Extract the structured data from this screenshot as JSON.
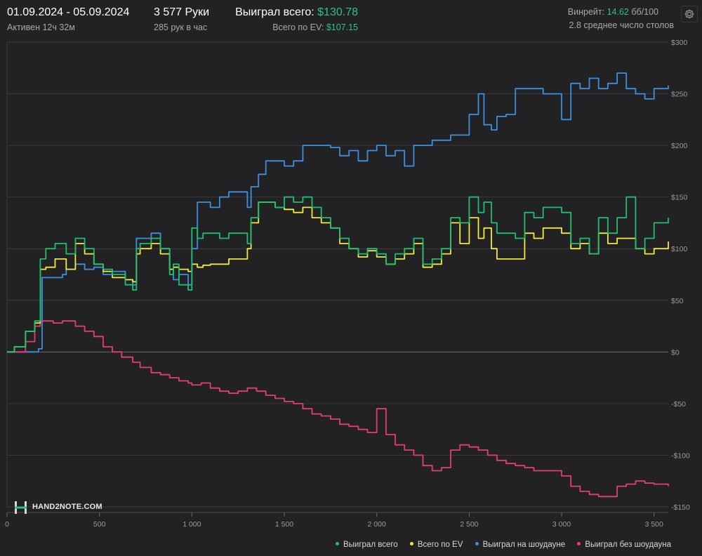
{
  "header": {
    "date_range": "01.09.2024 - 05.09.2024",
    "active": "Активен 12ч 32м",
    "hands": "3 577 Руки",
    "hands_per_hour": "285 рук в час",
    "won_label": "Выиграл всего:",
    "won_value": "$130.78",
    "ev_label": "Всего по EV:",
    "ev_value": "$107.15",
    "winrate_label": "Винрейт:",
    "winrate_value": "14.62",
    "winrate_unit": "бб/100",
    "avg_tables": "2.8 среднее число столов"
  },
  "brand": {
    "text": "HAND2NOTE.COM"
  },
  "colors": {
    "background": "#222224",
    "won": "#1fbf6e",
    "ev": "#f2e93a",
    "showdown": "#3d8fe0",
    "nonshowdown": "#e43c78"
  },
  "chart_data": {
    "type": "line",
    "xlim": [
      0,
      3577
    ],
    "ylim": [
      -150,
      300
    ],
    "x_ticks": [
      0,
      500,
      1000,
      1500,
      2000,
      2500,
      3000,
      3500
    ],
    "x_tick_labels": [
      "0",
      "500",
      "1 000",
      "1 500",
      "2 000",
      "2 500",
      "3 000",
      "3 500"
    ],
    "y_ticks": [
      300,
      250,
      200,
      150,
      100,
      50,
      0,
      -50,
      -100,
      -150
    ],
    "y_tick_labels": [
      "$300",
      "$250",
      "$200",
      "$150",
      "$100",
      "$50",
      "$0",
      "-$50",
      "-$100",
      "-$150"
    ],
    "grid": true,
    "legend_position": "bottom-right",
    "series": [
      {
        "name": "Выиграл всего",
        "color": "#1fbf6e",
        "x": [
          0,
          40,
          100,
          150,
          180,
          210,
          260,
          320,
          370,
          420,
          470,
          520,
          570,
          640,
          680,
          700,
          720,
          780,
          830,
          880,
          900,
          930,
          980,
          1000,
          1030,
          1060,
          1100,
          1150,
          1200,
          1300,
          1320,
          1360,
          1400,
          1450,
          1500,
          1550,
          1600,
          1650,
          1700,
          1750,
          1800,
          1850,
          1900,
          1950,
          2000,
          2050,
          2100,
          2150,
          2200,
          2250,
          2300,
          2350,
          2400,
          2450,
          2500,
          2550,
          2580,
          2620,
          2650,
          2700,
          2750,
          2800,
          2850,
          2900,
          3000,
          3050,
          3100,
          3150,
          3200,
          3250,
          3300,
          3350,
          3400,
          3450,
          3500,
          3577
        ],
        "y": [
          0,
          5,
          20,
          30,
          90,
          100,
          105,
          95,
          110,
          100,
          85,
          80,
          75,
          65,
          60,
          100,
          105,
          110,
          100,
          75,
          85,
          65,
          60,
          120,
          110,
          115,
          115,
          110,
          115,
          105,
          130,
          145,
          145,
          140,
          150,
          145,
          150,
          140,
          130,
          120,
          110,
          100,
          95,
          100,
          95,
          85,
          95,
          100,
          110,
          85,
          90,
          100,
          130,
          125,
          150,
          135,
          145,
          125,
          115,
          115,
          110,
          135,
          130,
          140,
          135,
          105,
          110,
          95,
          130,
          115,
          130,
          150,
          100,
          110,
          125,
          130
        ]
      },
      {
        "name": "Всего по EV",
        "color": "#f2e93a",
        "x": [
          0,
          40,
          100,
          150,
          180,
          210,
          260,
          320,
          370,
          420,
          470,
          520,
          570,
          640,
          680,
          700,
          720,
          780,
          830,
          880,
          900,
          930,
          980,
          1000,
          1030,
          1060,
          1100,
          1150,
          1200,
          1300,
          1320,
          1360,
          1400,
          1450,
          1500,
          1550,
          1600,
          1650,
          1700,
          1750,
          1800,
          1850,
          1900,
          1950,
          2000,
          2050,
          2100,
          2150,
          2200,
          2250,
          2300,
          2350,
          2400,
          2450,
          2500,
          2550,
          2580,
          2620,
          2650,
          2700,
          2750,
          2800,
          2850,
          2900,
          3000,
          3050,
          3100,
          3150,
          3200,
          3250,
          3300,
          3350,
          3400,
          3450,
          3500,
          3577
        ],
        "y": [
          0,
          5,
          20,
          28,
          80,
          82,
          90,
          80,
          105,
          95,
          85,
          78,
          72,
          70,
          68,
          95,
          100,
          105,
          95,
          80,
          82,
          80,
          78,
          85,
          82,
          84,
          85,
          85,
          90,
          100,
          125,
          145,
          145,
          140,
          138,
          135,
          140,
          130,
          125,
          120,
          105,
          100,
          92,
          98,
          92,
          85,
          90,
          95,
          105,
          82,
          85,
          95,
          125,
          105,
          130,
          110,
          120,
          100,
          90,
          90,
          90,
          115,
          110,
          120,
          115,
          100,
          105,
          95,
          115,
          105,
          110,
          110,
          100,
          95,
          100,
          107
        ]
      },
      {
        "name": "Выиграл на шоудауне",
        "color": "#3d8fe0",
        "x": [
          0,
          100,
          170,
          190,
          300,
          320,
          370,
          420,
          470,
          520,
          570,
          640,
          680,
          700,
          780,
          830,
          880,
          900,
          930,
          980,
          1000,
          1030,
          1060,
          1100,
          1150,
          1200,
          1300,
          1320,
          1360,
          1400,
          1450,
          1500,
          1550,
          1600,
          1650,
          1700,
          1750,
          1800,
          1850,
          1900,
          1950,
          2000,
          2050,
          2100,
          2150,
          2200,
          2250,
          2300,
          2350,
          2400,
          2450,
          2500,
          2550,
          2580,
          2620,
          2650,
          2700,
          2750,
          2800,
          2850,
          2900,
          3000,
          3050,
          3100,
          3150,
          3200,
          3250,
          3300,
          3350,
          3400,
          3450,
          3500,
          3577
        ],
        "y": [
          0,
          0,
          3,
          72,
          75,
          80,
          85,
          80,
          82,
          75,
          78,
          70,
          65,
          110,
          115,
          100,
          80,
          70,
          75,
          65,
          100,
          145,
          145,
          140,
          150,
          155,
          140,
          160,
          172,
          185,
          185,
          180,
          185,
          200,
          200,
          200,
          198,
          190,
          195,
          185,
          195,
          200,
          190,
          195,
          180,
          200,
          200,
          205,
          205,
          210,
          210,
          230,
          250,
          220,
          215,
          228,
          230,
          255,
          255,
          255,
          250,
          225,
          260,
          255,
          265,
          255,
          260,
          270,
          255,
          250,
          245,
          255,
          258
        ]
      },
      {
        "name": "Выиграл без шоудауна",
        "color": "#e43c78",
        "x": [
          0,
          100,
          150,
          180,
          250,
          300,
          370,
          420,
          470,
          520,
          570,
          620,
          680,
          720,
          780,
          830,
          880,
          930,
          980,
          1000,
          1050,
          1100,
          1150,
          1200,
          1250,
          1300,
          1350,
          1400,
          1450,
          1500,
          1550,
          1600,
          1650,
          1700,
          1750,
          1800,
          1850,
          1900,
          1950,
          2000,
          2050,
          2100,
          2150,
          2200,
          2250,
          2300,
          2350,
          2400,
          2450,
          2500,
          2550,
          2600,
          2650,
          2700,
          2750,
          2800,
          2850,
          2900,
          3000,
          3050,
          3100,
          3150,
          3200,
          3250,
          3300,
          3350,
          3400,
          3450,
          3500,
          3577
        ],
        "y": [
          0,
          10,
          25,
          30,
          28,
          30,
          25,
          20,
          15,
          5,
          0,
          -5,
          -10,
          -15,
          -20,
          -22,
          -25,
          -28,
          -30,
          -32,
          -30,
          -35,
          -38,
          -40,
          -38,
          -35,
          -38,
          -42,
          -45,
          -48,
          -50,
          -55,
          -60,
          -62,
          -65,
          -70,
          -72,
          -75,
          -78,
          -55,
          -80,
          -90,
          -95,
          -100,
          -110,
          -115,
          -112,
          -95,
          -90,
          -92,
          -95,
          -100,
          -105,
          -108,
          -110,
          -112,
          -115,
          -115,
          -120,
          -130,
          -135,
          -138,
          -140,
          -140,
          -130,
          -128,
          -125,
          -127,
          -128,
          -130
        ]
      }
    ]
  }
}
